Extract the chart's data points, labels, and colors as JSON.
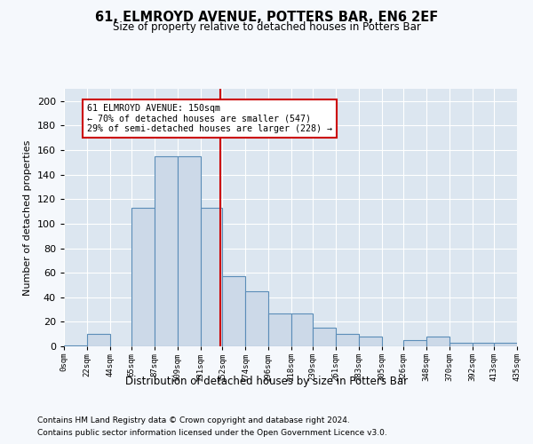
{
  "title": "61, ELMROYD AVENUE, POTTERS BAR, EN6 2EF",
  "subtitle": "Size of property relative to detached houses in Potters Bar",
  "xlabel": "Distribution of detached houses by size in Potters Bar",
  "ylabel": "Number of detached properties",
  "bin_edges": [
    0,
    22,
    44,
    65,
    87,
    109,
    131,
    152,
    174,
    196,
    218,
    239,
    261,
    283,
    305,
    326,
    348,
    370,
    392,
    413,
    435
  ],
  "bin_labels": [
    "0sqm",
    "22sqm",
    "44sqm",
    "65sqm",
    "87sqm",
    "109sqm",
    "131sqm",
    "152sqm",
    "174sqm",
    "196sqm",
    "218sqm",
    "239sqm",
    "261sqm",
    "283sqm",
    "305sqm",
    "326sqm",
    "348sqm",
    "370sqm",
    "392sqm",
    "413sqm",
    "435sqm"
  ],
  "counts": [
    1,
    10,
    0,
    113,
    155,
    155,
    113,
    57,
    45,
    27,
    27,
    15,
    10,
    8,
    0,
    5,
    8,
    3,
    3,
    3
  ],
  "bar_color": "#ccd9e8",
  "bar_edge_color": "#5b8db8",
  "property_line_x": 150,
  "property_line_color": "#cc0000",
  "annotation_text": "61 ELMROYD AVENUE: 150sqm\n← 70% of detached houses are smaller (547)\n29% of semi-detached houses are larger (228) →",
  "annotation_box_color": "#ffffff",
  "annotation_box_edge_color": "#cc0000",
  "ylim": [
    0,
    210
  ],
  "yticks": [
    0,
    20,
    40,
    60,
    80,
    100,
    120,
    140,
    160,
    180,
    200
  ],
  "background_color": "#dce6f0",
  "fig_background_color": "#f5f8fc",
  "footer_line1": "Contains HM Land Registry data © Crown copyright and database right 2024.",
  "footer_line2": "Contains public sector information licensed under the Open Government Licence v3.0."
}
